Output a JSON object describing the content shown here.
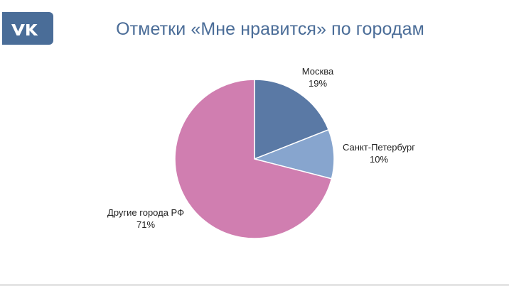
{
  "header": {
    "logo_icon": "vk-logo-icon",
    "logo_color": "#4a6d98",
    "title": "Отметки «Мне нравится» по городам"
  },
  "chart_data": {
    "type": "pie",
    "title": "Отметки «Мне нравится» по городам",
    "slices": [
      {
        "label": "Москва",
        "value": 19,
        "value_label": "19%",
        "color": "#5a79a5"
      },
      {
        "label": "Санкт-Петербург",
        "value": 10,
        "value_label": "10%",
        "color": "#87a5ce"
      },
      {
        "label": "Другие города РФ",
        "value": 71,
        "value_label": "71%",
        "color": "#d07eb0"
      }
    ],
    "start": "12 o'clock",
    "direction": "clockwise",
    "legend": "none"
  }
}
